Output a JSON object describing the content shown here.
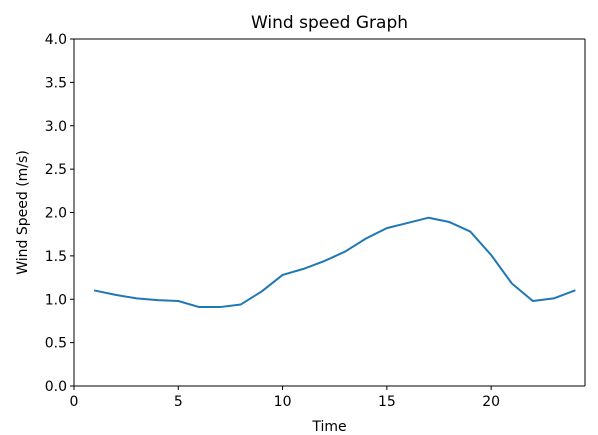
{
  "chart_data": {
    "type": "line",
    "title": "Wind speed Graph",
    "xlabel": "Time",
    "ylabel": "Wind Speed (m/s)",
    "xlim": [
      0,
      24.5
    ],
    "ylim": [
      0,
      4.0
    ],
    "x_ticks": [
      0,
      5,
      10,
      15,
      20
    ],
    "x_tick_labels": [
      "0",
      "5",
      "10",
      "15",
      "20"
    ],
    "y_ticks": [
      0,
      0.5,
      1.0,
      1.5,
      2.0,
      2.5,
      3.0,
      3.5,
      4.0
    ],
    "y_tick_labels": [
      "0.0",
      "0.5",
      "1.0",
      "1.5",
      "2.0",
      "2.5",
      "3.0",
      "3.5",
      "4.0"
    ],
    "grid": false,
    "series": [
      {
        "color": "#1f77b4",
        "x": [
          1,
          2,
          3,
          4,
          5,
          6,
          7,
          8,
          9,
          10,
          11,
          12,
          13,
          14,
          15,
          16,
          17,
          18,
          19,
          20,
          21,
          22,
          23,
          24
        ],
        "values": [
          1.1,
          1.05,
          1.01,
          0.99,
          0.98,
          0.91,
          0.91,
          0.94,
          1.09,
          1.28,
          1.35,
          1.44,
          1.55,
          1.7,
          1.82,
          1.88,
          1.94,
          1.89,
          1.78,
          1.51,
          1.18,
          0.98,
          1.01,
          1.1
        ]
      }
    ]
  }
}
